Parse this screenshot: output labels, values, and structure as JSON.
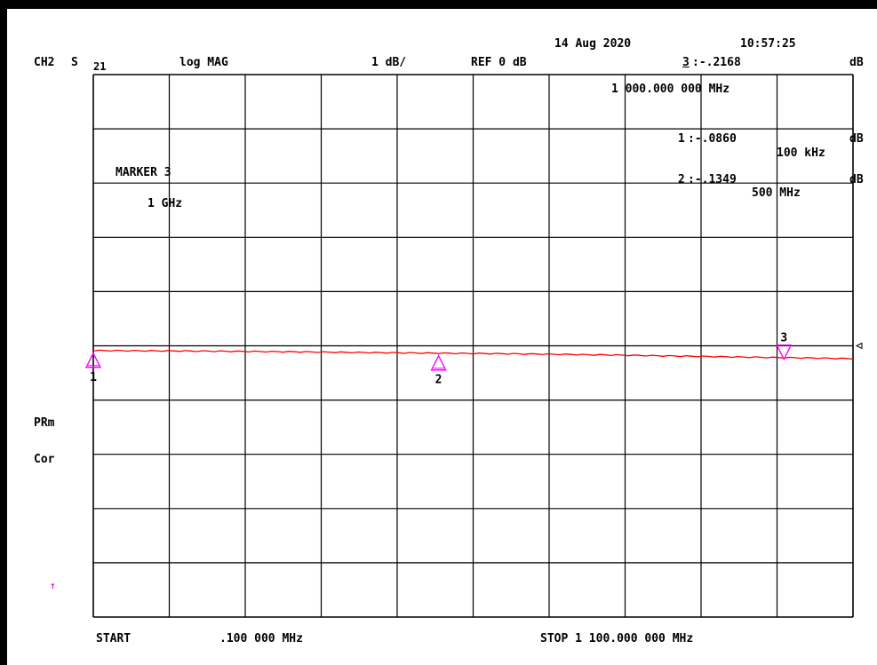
{
  "header": {
    "channel": "CH2",
    "param_s": "S",
    "param_sub": "21",
    "format": "log MAG",
    "scale": "1 dB/",
    "ref": "REF 0 dB",
    "date": "14 Aug 2020",
    "time": "10:57:25"
  },
  "active_marker": {
    "num": "3",
    "value": ":-.2168",
    "unit": "dB",
    "freq": "1 000.000 000 MHz"
  },
  "marker_list": [
    {
      "num": "1",
      "value": ":-.0860",
      "unit": "dB",
      "freq": "100 kHz"
    },
    {
      "num": "2",
      "value": ":-.1349",
      "unit": "dB",
      "freq": "500 MHz"
    }
  ],
  "marker_label": {
    "title": "MARKER 3",
    "freq": "1 GHz"
  },
  "side_labels": {
    "prm": "PRm",
    "cor": "Cor",
    "arrow": "↑"
  },
  "footer": {
    "start_label": "START",
    "start_value": ".100 000 MHz",
    "stop": "STOP 1 100.000 000 MHz"
  },
  "colors": {
    "trace": "#ff0000",
    "marker": "#ff00ff",
    "grid": "#000000",
    "background": "#ffffff"
  },
  "chart_data": {
    "type": "line",
    "xlabel": "",
    "ylabel": "",
    "x_unit": "MHz",
    "xlim": [
      0.1,
      1100
    ],
    "y_unit": "dB",
    "ref_db": 0,
    "db_per_div": 1,
    "ylim": [
      -5,
      5
    ],
    "x_divisions": 10,
    "y_divisions": 10,
    "grid": true,
    "series": [
      {
        "x": [
          0.1,
          100,
          200,
          300,
          400,
          500,
          600,
          700,
          800,
          900,
          1000,
          1100
        ],
        "y": [
          -0.086,
          -0.092,
          -0.1,
          -0.11,
          -0.123,
          -0.1349,
          -0.145,
          -0.16,
          -0.178,
          -0.198,
          -0.2168,
          -0.235
        ]
      }
    ],
    "markers": [
      {
        "num": "1",
        "x": 0.1,
        "y": -0.086,
        "orientation": "up"
      },
      {
        "num": "2",
        "x": 500,
        "y": -0.1349,
        "orientation": "up"
      },
      {
        "num": "3",
        "x": 1000,
        "y": -0.2168,
        "orientation": "down"
      }
    ]
  }
}
